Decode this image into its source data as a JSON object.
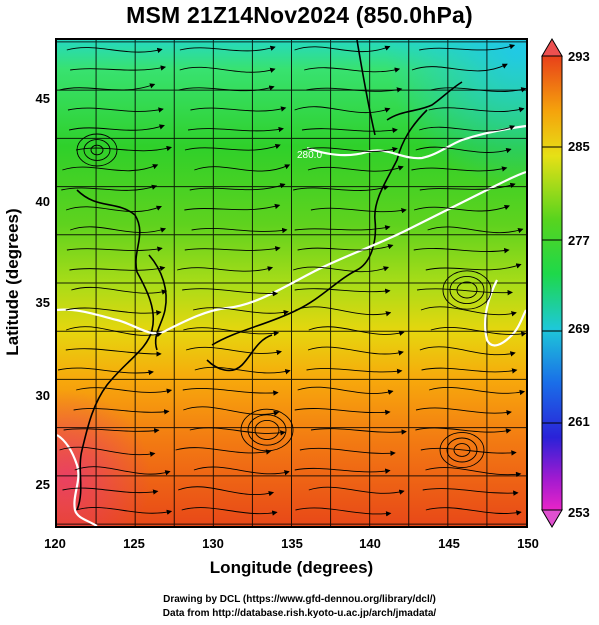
{
  "title": "MSM 21Z14Nov2024 (850.0hPa)",
  "axes": {
    "xlabel": "Longitude (degrees)",
    "ylabel": "Latitude  (degrees)",
    "xticks": [
      "120",
      "125",
      "130",
      "135",
      "140",
      "145",
      "150"
    ],
    "yticks": [
      "45",
      "40",
      "35",
      "30",
      "25"
    ],
    "xlim": [
      120,
      150
    ],
    "ylim": [
      22.4,
      47.6
    ]
  },
  "map": {
    "field": "temperature",
    "overlay": "streamlines",
    "contour_label": "280.0",
    "gridlines": true
  },
  "colorbar": {
    "labels": [
      "293",
      "285",
      "277",
      "269",
      "261",
      "253"
    ],
    "range": [
      253,
      293
    ]
  },
  "footer": {
    "line1": "Drawing by DCL (https://www.gfd-dennou.org/library/dcl/)",
    "line2": "Data from http://database.rish.kyoto-u.ac.jp/arch/jmadata/"
  }
}
